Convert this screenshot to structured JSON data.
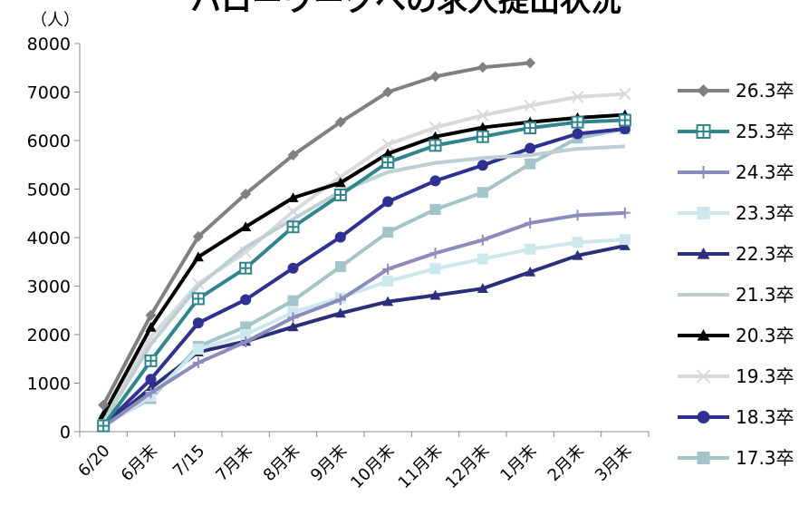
{
  "chart_data": {
    "type": "line",
    "title": "ハローワークへの求人提出状況",
    "y_unit": "（人）",
    "ylim": [
      0,
      8000
    ],
    "yticks": [
      0,
      1000,
      2000,
      3000,
      4000,
      5000,
      6000,
      7000,
      8000
    ],
    "grid": false,
    "legend_position": "right",
    "categories": [
      "6/20",
      "6月末",
      "7/15",
      "7月末",
      "8月末",
      "9月末",
      "10月末",
      "11月末",
      "12月末",
      "1月末",
      "2月末",
      "3月末"
    ],
    "series": [
      {
        "name": "26.3卒",
        "color": "#808080",
        "marker": "diamond",
        "values": [
          550,
          2400,
          4020,
          4900,
          5700,
          6380,
          7000,
          7320,
          7510,
          7600,
          null,
          null
        ]
      },
      {
        "name": "25.3卒",
        "color": "#31858C",
        "marker": "cross-square",
        "values": [
          120,
          1460,
          2740,
          3370,
          4220,
          4880,
          5550,
          5900,
          6080,
          6260,
          6380,
          6420
        ]
      },
      {
        "name": "24.3卒",
        "color": "#8B8BBE",
        "marker": "plus",
        "values": [
          100,
          800,
          1420,
          1850,
          2350,
          2720,
          3350,
          3680,
          3950,
          4300,
          4460,
          4510
        ]
      },
      {
        "name": "23.3卒",
        "color": "#CCE8EC",
        "marker": "square",
        "values": [
          100,
          730,
          1700,
          2000,
          2460,
          2760,
          3100,
          3360,
          3560,
          3760,
          3900,
          3960
        ]
      },
      {
        "name": "22.3卒",
        "color": "#2B2E7A",
        "marker": "triangle",
        "values": [
          100,
          900,
          1640,
          1860,
          2160,
          2440,
          2680,
          2810,
          2950,
          3290,
          3630,
          3830
        ]
      },
      {
        "name": "21.3卒",
        "color": "#BCCFD3",
        "marker": "none",
        "values": [
          200,
          1800,
          3000,
          3800,
          4380,
          4950,
          5350,
          5540,
          5640,
          5700,
          5830,
          5880
        ]
      },
      {
        "name": "20.3卒",
        "color": "#000000",
        "marker": "triangle",
        "values": [
          350,
          2150,
          3600,
          4220,
          4820,
          5130,
          5730,
          6080,
          6270,
          6380,
          6470,
          6530
        ]
      },
      {
        "name": "19.3卒",
        "color": "#D9D9D9",
        "marker": "x",
        "values": [
          250,
          1950,
          3050,
          3700,
          4540,
          5250,
          5920,
          6270,
          6520,
          6720,
          6900,
          6960
        ]
      },
      {
        "name": "18.3卒",
        "color": "#2E3191",
        "marker": "circle",
        "values": [
          120,
          1080,
          2240,
          2720,
          3370,
          4010,
          4740,
          5170,
          5490,
          5840,
          6140,
          6240
        ]
      },
      {
        "name": "17.3卒",
        "color": "#A3C4C9",
        "marker": "square",
        "values": [
          150,
          680,
          1760,
          2160,
          2700,
          3400,
          4110,
          4580,
          4930,
          5520,
          6050,
          6240
        ]
      }
    ]
  }
}
